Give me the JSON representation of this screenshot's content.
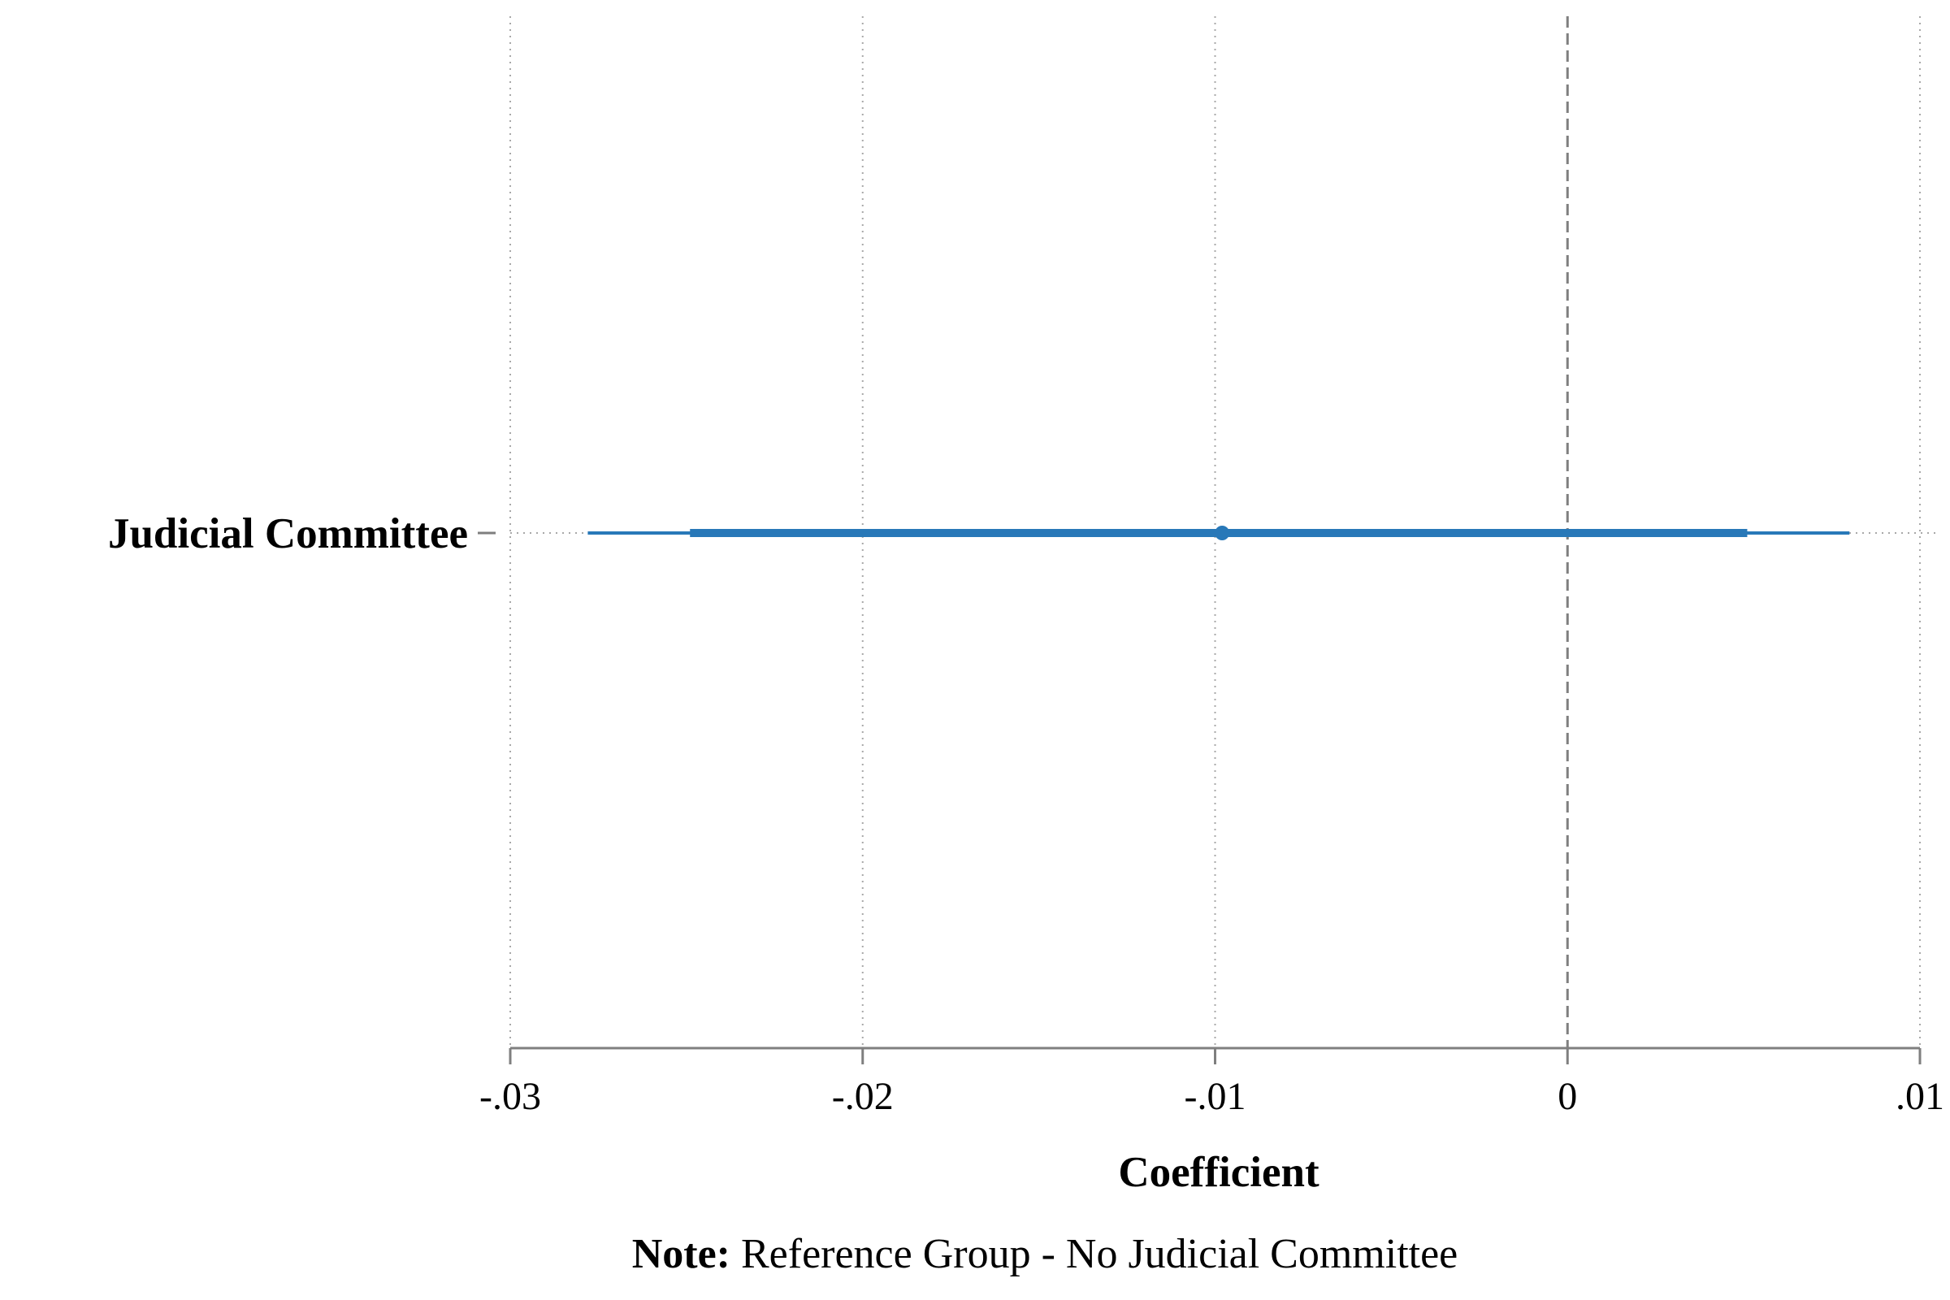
{
  "chart_data": {
    "type": "coefficient_plot",
    "xlabel": "Coefficient",
    "xlim": [
      -0.03,
      0.01
    ],
    "xticks": [
      {
        "value": -0.03,
        "label": "-.03"
      },
      {
        "value": -0.02,
        "label": "-.02"
      },
      {
        "value": -0.01,
        "label": "-.01"
      },
      {
        "value": 0,
        "label": "0"
      },
      {
        "value": 0.01,
        "label": ".01"
      }
    ],
    "reference_line": 0,
    "grid": true,
    "series": [
      {
        "category": "Judicial Committee",
        "estimate": -0.0098,
        "ci_outer": [
          -0.0278,
          0.008
        ],
        "ci_inner": [
          -0.0249,
          0.0051
        ]
      }
    ],
    "note": {
      "label": "Note:",
      "text": " Reference Group - No Judicial Committee"
    },
    "colors": {
      "series": "#2878b8",
      "grid": "#a8a8a8",
      "axis": "#7f7f7f",
      "reference": "#7f7f7f"
    }
  }
}
